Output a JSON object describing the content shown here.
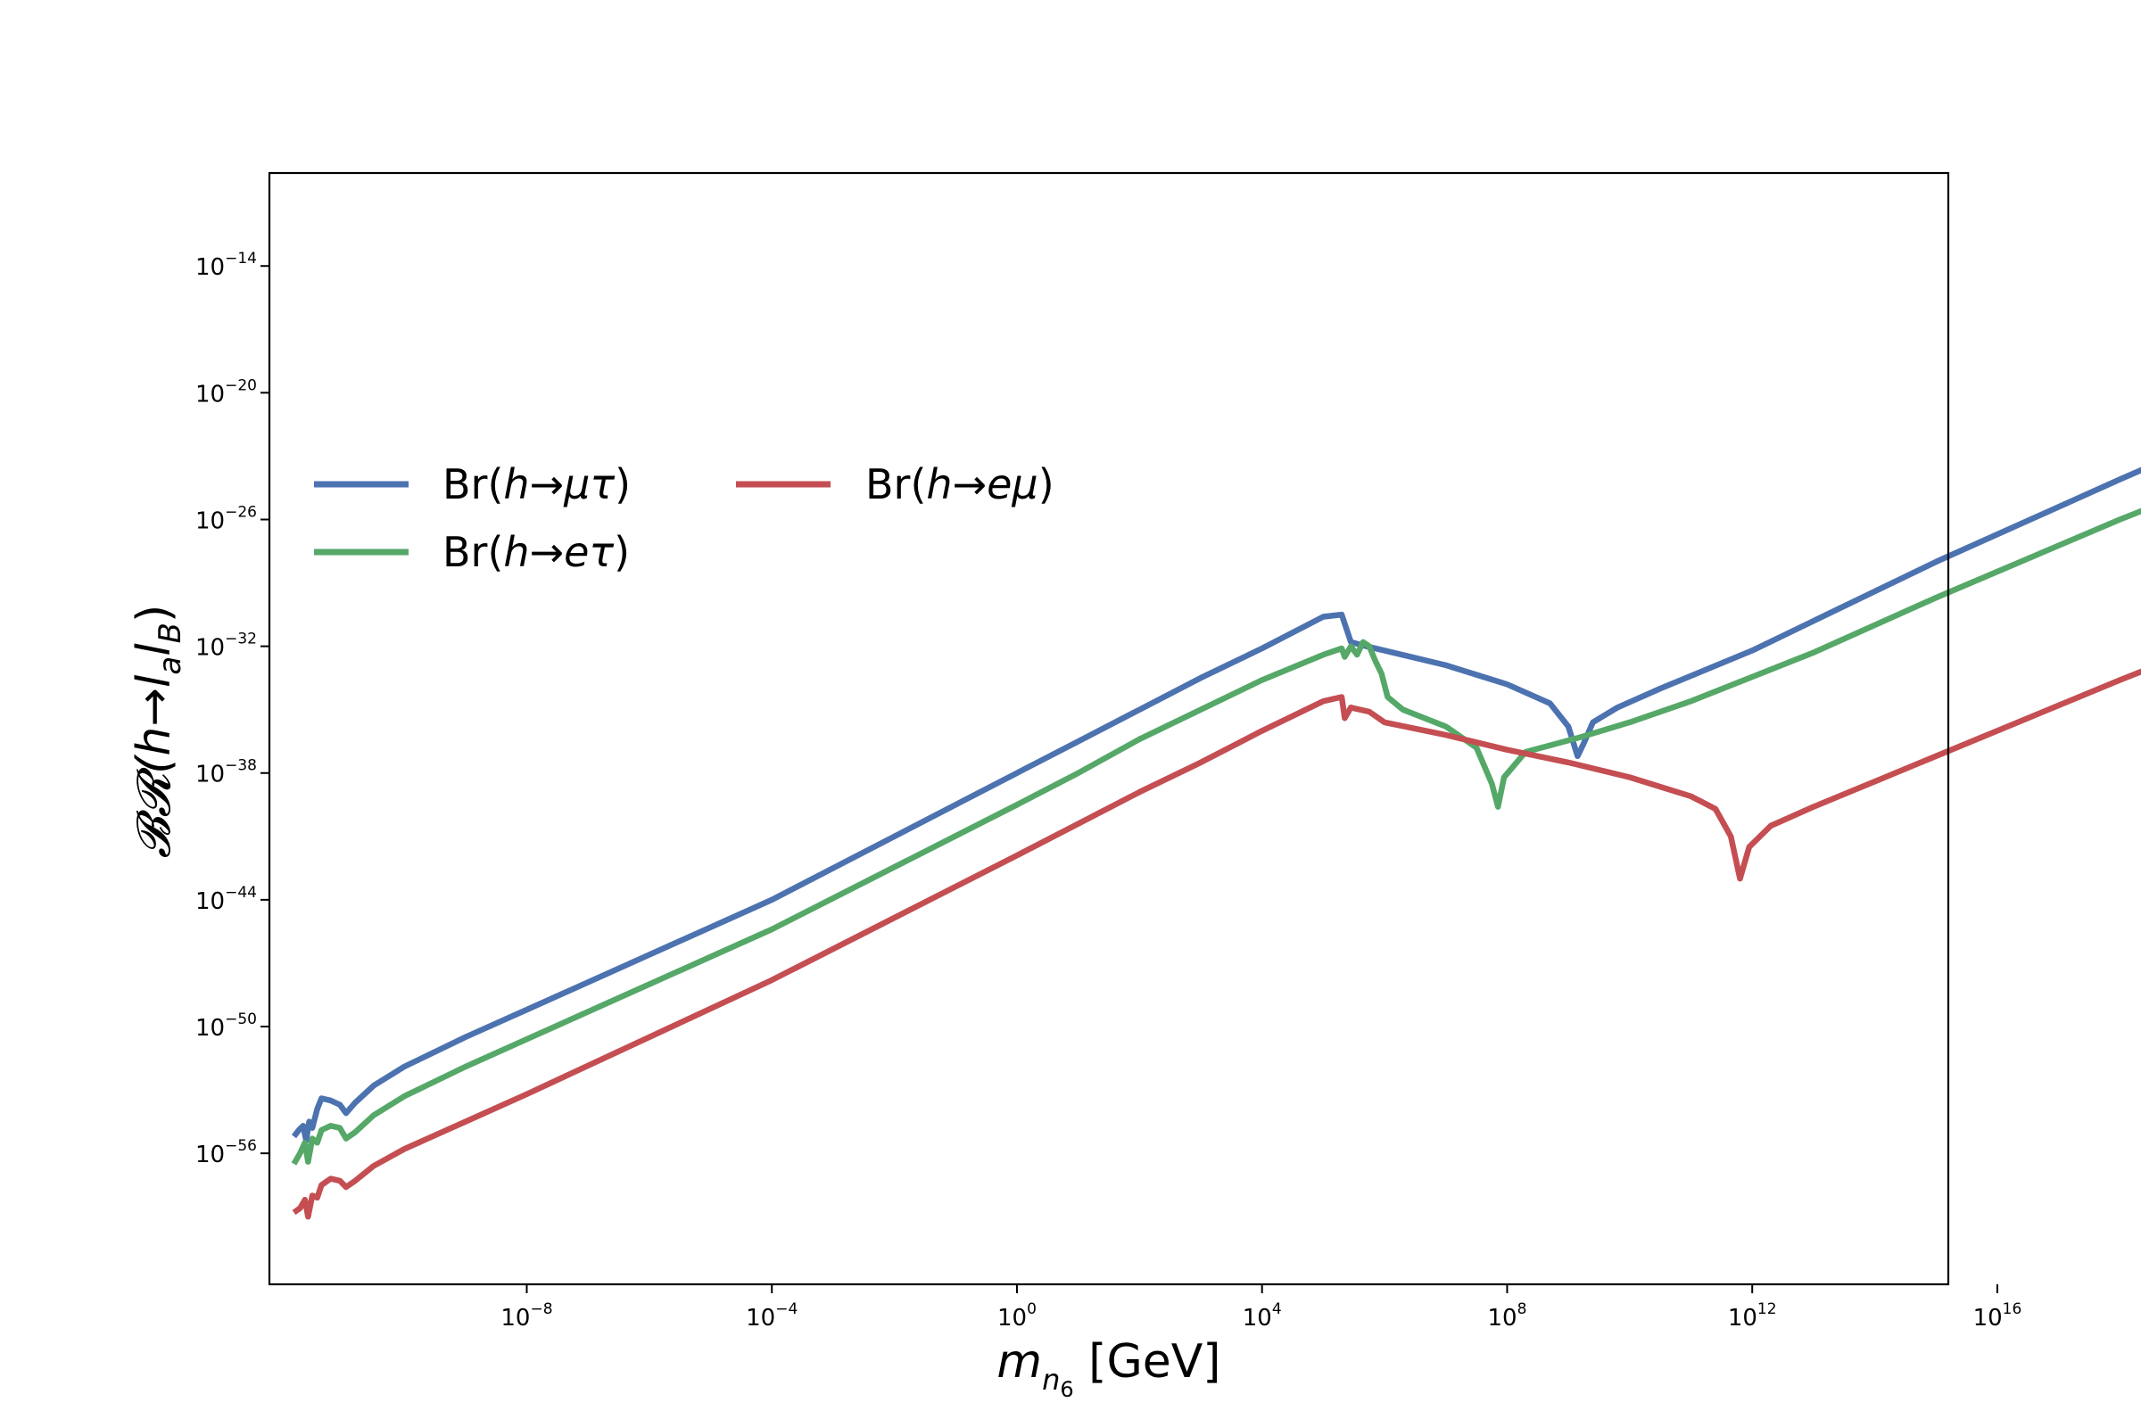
{
  "chart_data": {
    "type": "line",
    "title": "",
    "xlabel": {
      "main": "m",
      "sub": "n",
      "subsub": "6",
      "unit": " [GeV]"
    },
    "ylabel": {
      "text": "𝓑𝓡(h→l",
      "sub_a": "a",
      "mid": "l",
      "sub_b": "B",
      "close": ")"
    },
    "xscale": "log",
    "yscale": "log",
    "xlim_log10": [
      -12.2,
      15.2
    ],
    "ylim_log10": [
      -62.2,
      -9.6
    ],
    "xticks": [
      {
        "value": -8,
        "base": "10",
        "exp": "−8"
      },
      {
        "value": -4,
        "base": "10",
        "exp": "−4"
      },
      {
        "value": 0,
        "base": "10",
        "exp": "0"
      },
      {
        "value": 4,
        "base": "10",
        "exp": "4"
      },
      {
        "value": 8,
        "base": "10",
        "exp": "8"
      },
      {
        "value": 12,
        "base": "10",
        "exp": "12"
      },
      {
        "value": 16,
        "base": "10",
        "exp": "16"
      }
    ],
    "yticks": [
      {
        "value": -14,
        "base": "10",
        "exp": "−14"
      },
      {
        "value": -20,
        "base": "10",
        "exp": "−20"
      },
      {
        "value": -26,
        "base": "10",
        "exp": "−26"
      },
      {
        "value": -32,
        "base": "10",
        "exp": "−32"
      },
      {
        "value": -38,
        "base": "10",
        "exp": "−38"
      },
      {
        "value": -44,
        "base": "10",
        "exp": "−44"
      },
      {
        "value": -50,
        "base": "10",
        "exp": "−50"
      },
      {
        "value": -56,
        "base": "10",
        "exp": "−56"
      }
    ],
    "grid": false,
    "legend": {
      "placement": "upper-left",
      "columns": 2
    },
    "series": [
      {
        "name": "Br(h→μτ)",
        "name_prefix": "Br(",
        "name_italic": "h",
        "name_arrow": "→",
        "name_particles": "μτ",
        "name_suffix": ")",
        "color": "#4c72b0",
        "points_log10": [
          [
            -11.8,
            -55.2
          ],
          [
            -11.72,
            -54.9
          ],
          [
            -11.65,
            -54.7
          ],
          [
            -11.6,
            -55.4
          ],
          [
            -11.55,
            -54.5
          ],
          [
            -11.5,
            -54.8
          ],
          [
            -11.42,
            -53.9
          ],
          [
            -11.35,
            -53.4
          ],
          [
            -11.2,
            -53.5
          ],
          [
            -11.05,
            -53.7
          ],
          [
            -10.95,
            -54.1
          ],
          [
            -10.8,
            -53.6
          ],
          [
            -10.5,
            -52.8
          ],
          [
            -10,
            -51.9
          ],
          [
            -9,
            -50.5
          ],
          [
            -8,
            -49.2
          ],
          [
            -4,
            -44.0
          ],
          [
            0,
            -38.0
          ],
          [
            1,
            -36.5
          ],
          [
            2,
            -35.0
          ],
          [
            3,
            -33.5
          ],
          [
            4,
            -32.1
          ],
          [
            5,
            -30.6
          ],
          [
            5.3,
            -30.5
          ],
          [
            5.45,
            -31.8
          ],
          [
            5.7,
            -32.0
          ],
          [
            6,
            -32.2
          ],
          [
            7,
            -32.9
          ],
          [
            8,
            -33.8
          ],
          [
            8.7,
            -34.7
          ],
          [
            9.0,
            -35.8
          ],
          [
            9.15,
            -37.2
          ],
          [
            9.25,
            -36.6
          ],
          [
            9.4,
            -35.6
          ],
          [
            9.8,
            -34.9
          ],
          [
            10.5,
            -34.0
          ],
          [
            12,
            -32.2
          ],
          [
            15,
            -28.0
          ],
          [
            18,
            -24.1
          ],
          [
            21,
            -20.3
          ],
          [
            24,
            -16.3
          ],
          [
            25,
            -15.0
          ],
          [
            26,
            -13.3
          ],
          [
            27.2,
            -11.2
          ]
        ]
      },
      {
        "name": "Br(h→eτ)",
        "name_prefix": "Br(",
        "name_italic": "h",
        "name_arrow": "→",
        "name_particles": "eτ",
        "name_suffix": ")",
        "color": "#55a868",
        "points_log10": [
          [
            -11.8,
            -56.5
          ],
          [
            -11.7,
            -56.0
          ],
          [
            -11.62,
            -55.5
          ],
          [
            -11.57,
            -56.4
          ],
          [
            -11.5,
            -55.3
          ],
          [
            -11.42,
            -55.5
          ],
          [
            -11.35,
            -54.9
          ],
          [
            -11.2,
            -54.7
          ],
          [
            -11.05,
            -54.8
          ],
          [
            -10.95,
            -55.3
          ],
          [
            -10.8,
            -55.0
          ],
          [
            -10.5,
            -54.2
          ],
          [
            -10,
            -53.3
          ],
          [
            -9,
            -51.9
          ],
          [
            -8,
            -50.6
          ],
          [
            -4,
            -45.4
          ],
          [
            0,
            -39.5
          ],
          [
            1,
            -38.0
          ],
          [
            2,
            -36.4
          ],
          [
            3,
            -35.0
          ],
          [
            4,
            -33.6
          ],
          [
            5,
            -32.4
          ],
          [
            5.3,
            -32.1
          ],
          [
            5.35,
            -32.5
          ],
          [
            5.45,
            -32.0
          ],
          [
            5.55,
            -32.4
          ],
          [
            5.65,
            -31.8
          ],
          [
            5.75,
            -32.0
          ],
          [
            5.85,
            -32.7
          ],
          [
            5.95,
            -33.3
          ],
          [
            6.05,
            -34.4
          ],
          [
            6.3,
            -35.0
          ],
          [
            7,
            -35.8
          ],
          [
            7.5,
            -36.8
          ],
          [
            7.75,
            -38.5
          ],
          [
            7.85,
            -39.6
          ],
          [
            7.95,
            -38.2
          ],
          [
            8.3,
            -37.0
          ],
          [
            9.2,
            -36.3
          ],
          [
            10,
            -35.6
          ],
          [
            11,
            -34.6
          ],
          [
            13,
            -32.3
          ],
          [
            15,
            -29.7
          ],
          [
            18,
            -26.0
          ],
          [
            20,
            -23.7
          ],
          [
            21,
            -22.4
          ],
          [
            21.6,
            -21.8
          ],
          [
            22,
            -21.5
          ],
          [
            23,
            -20.5
          ],
          [
            24,
            -19.2
          ],
          [
            25,
            -17.5
          ],
          [
            26,
            -15.4
          ],
          [
            27.2,
            -11.0
          ]
        ]
      },
      {
        "name": "Br(h→eμ)",
        "name_prefix": "Br(",
        "name_italic": "h",
        "name_arrow": "→",
        "name_particles": "eμ",
        "name_suffix": ")",
        "color": "#c44e52",
        "points_log10": [
          [
            -11.8,
            -58.8
          ],
          [
            -11.7,
            -58.6
          ],
          [
            -11.62,
            -58.2
          ],
          [
            -11.57,
            -59.0
          ],
          [
            -11.5,
            -58.0
          ],
          [
            -11.42,
            -58.1
          ],
          [
            -11.35,
            -57.5
          ],
          [
            -11.2,
            -57.2
          ],
          [
            -11.05,
            -57.3
          ],
          [
            -10.95,
            -57.6
          ],
          [
            -10.8,
            -57.3
          ],
          [
            -10.5,
            -56.6
          ],
          [
            -10,
            -55.8
          ],
          [
            -9,
            -54.5
          ],
          [
            -8,
            -53.2
          ],
          [
            -4,
            -47.8
          ],
          [
            0,
            -41.9
          ],
          [
            1,
            -40.4
          ],
          [
            2,
            -38.9
          ],
          [
            3,
            -37.5
          ],
          [
            4,
            -36.0
          ],
          [
            5,
            -34.6
          ],
          [
            5.3,
            -34.4
          ],
          [
            5.35,
            -35.4
          ],
          [
            5.45,
            -34.9
          ],
          [
            5.6,
            -35.0
          ],
          [
            5.75,
            -35.1
          ],
          [
            6,
            -35.6
          ],
          [
            7,
            -36.2
          ],
          [
            8,
            -36.9
          ],
          [
            9,
            -37.5
          ],
          [
            10,
            -38.2
          ],
          [
            11,
            -39.1
          ],
          [
            11.4,
            -39.7
          ],
          [
            11.65,
            -41.0
          ],
          [
            11.8,
            -43.0
          ],
          [
            11.95,
            -41.5
          ],
          [
            12.3,
            -40.5
          ],
          [
            13,
            -39.6
          ],
          [
            14,
            -38.4
          ],
          [
            16,
            -36.0
          ],
          [
            18,
            -33.6
          ],
          [
            20,
            -31.3
          ],
          [
            22,
            -29.2
          ],
          [
            23,
            -28.0
          ],
          [
            24,
            -26.2
          ],
          [
            25,
            -23.5
          ],
          [
            26,
            -20.9
          ],
          [
            27.2,
            -17.9
          ]
        ]
      }
    ]
  }
}
